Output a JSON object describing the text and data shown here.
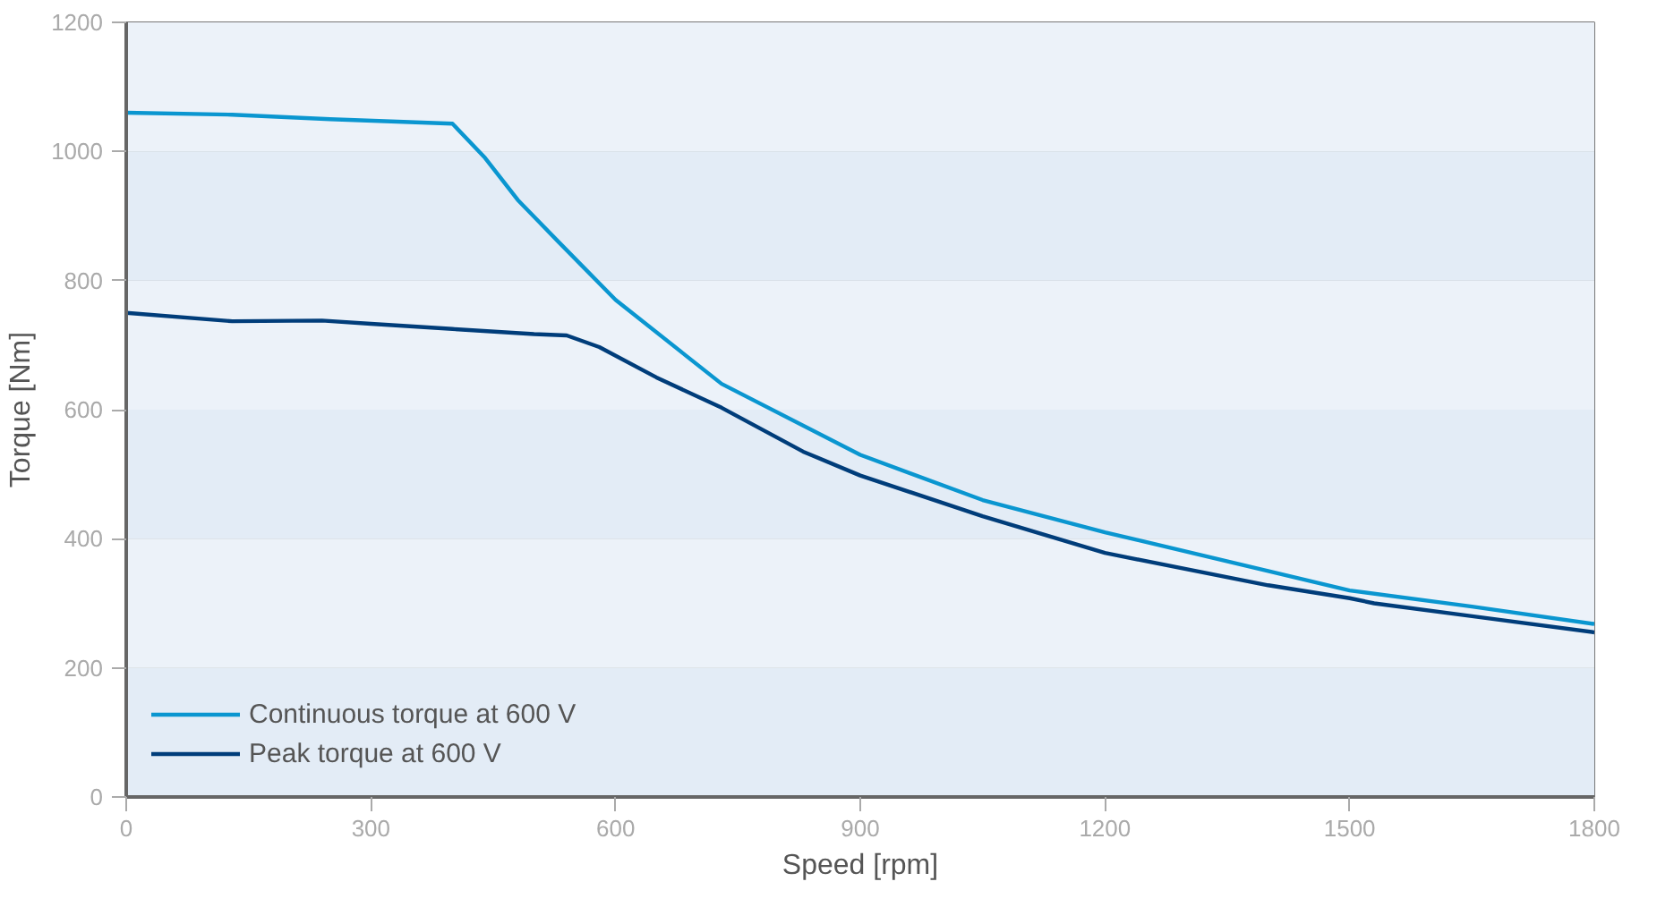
{
  "chart_data": {
    "type": "line",
    "xlabel": "Speed [rpm]",
    "ylabel": "Torque [Nm]",
    "xlim": [
      0,
      1800
    ],
    "xticks": [
      0,
      300,
      600,
      900,
      1200,
      1500,
      1800
    ],
    "ylim": [
      0,
      1200
    ],
    "yticks": [
      0,
      200,
      400,
      600,
      800,
      1000,
      1200
    ],
    "grid": true,
    "legend": "bottom left",
    "marker": "none",
    "line_style": "solid",
    "bands": [
      {
        "axis": "y",
        "from": 0,
        "to": 200,
        "color": "#e3ecf6"
      },
      {
        "axis": "y",
        "from": 200,
        "to": 400,
        "color": "#ecf2f9"
      },
      {
        "axis": "y",
        "from": 400,
        "to": 600,
        "color": "#e3ecf6"
      },
      {
        "axis": "y",
        "from": 600,
        "to": 800,
        "color": "#ecf2f9"
      },
      {
        "axis": "y",
        "from": 800,
        "to": 1000,
        "color": "#e3ecf6"
      },
      {
        "axis": "y",
        "from": 1000,
        "to": 1200,
        "color": "#ecf2f9"
      }
    ],
    "series": [
      {
        "name": "Continuous torque at 600 V",
        "color": "#0a96d0",
        "x": [
          0,
          130,
          250,
          400,
          440,
          480,
          530,
          600,
          730,
          900,
          1050,
          1200,
          1400,
          1500,
          1650,
          1800
        ],
        "values": [
          1060,
          1057,
          1050,
          1043,
          990,
          925,
          860,
          770,
          640,
          530,
          460,
          410,
          350,
          320,
          295,
          268
        ]
      },
      {
        "name": "Peak torque at 600 V",
        "color": "#003d7a",
        "x": [
          0,
          130,
          240,
          300,
          400,
          500,
          540,
          580,
          650,
          730,
          830,
          900,
          1050,
          1200,
          1400,
          1500,
          1530,
          1650,
          1800
        ],
        "values": [
          750,
          737,
          738,
          733,
          725,
          717,
          715,
          697,
          650,
          603,
          535,
          498,
          435,
          378,
          328,
          308,
          300,
          280,
          255
        ]
      }
    ]
  }
}
